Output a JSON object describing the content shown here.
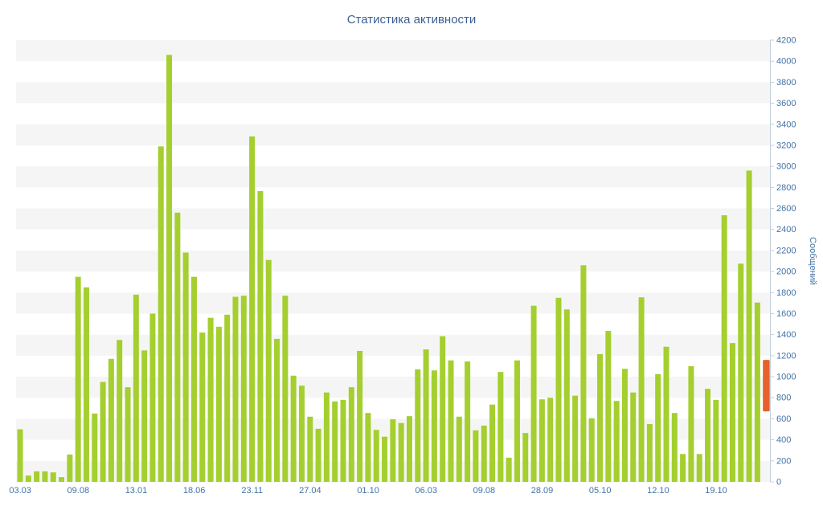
{
  "title": "Статистика активности",
  "y_axis": {
    "label": "Сообщений",
    "min": 0,
    "max": 4200,
    "tick_step": 200
  },
  "x_axis": {
    "tick_labels": [
      "03.03",
      "09.08",
      "13.01",
      "18.06",
      "23.11",
      "27.04",
      "01.10",
      "06.03",
      "09.08",
      "28.09",
      "05.10",
      "12.10",
      "19.10"
    ],
    "ticks_every_n_bars": 7
  },
  "colors": {
    "bar": "#a4cf2f",
    "highlight": "#e6612c",
    "axis_text": "#4273a6",
    "axis_line": "#c3cfdd",
    "title_text": "#3a5f91",
    "band": "#f5f5f5",
    "background": "#ffffff"
  },
  "chart_data": {
    "type": "bar",
    "title": "Статистика активности",
    "xlabel": "",
    "ylabel": "Сообщений",
    "ylim": [
      0,
      4200
    ],
    "ytick_step": 200,
    "grid": "alternating-horizontal-bands",
    "legend": "none",
    "values": [
      500,
      60,
      100,
      100,
      90,
      45,
      260,
      1950,
      1850,
      650,
      950,
      1170,
      1350,
      900,
      1780,
      1250,
      1600,
      3190,
      4060,
      2560,
      2180,
      1950,
      1420,
      1560,
      1475,
      1590,
      1760,
      1770,
      3285,
      2765,
      2110,
      1360,
      1770,
      1010,
      915,
      620,
      505,
      850,
      765,
      780,
      900,
      1245,
      655,
      495,
      430,
      595,
      560,
      625,
      1070,
      1260,
      1060,
      1385,
      1155,
      620,
      1145,
      490,
      535,
      735,
      1045,
      230,
      1155,
      465,
      1675,
      785,
      800,
      1750,
      1640,
      820,
      2060,
      605,
      1215,
      1435,
      770,
      1075,
      850,
      1755,
      550,
      1025,
      1285,
      655,
      265,
      1100,
      265,
      885,
      780,
      2535,
      1320,
      2075,
      2960,
      1705
    ],
    "highlight_bar": {
      "value_top": 1160,
      "value_bottom": 670
    }
  }
}
